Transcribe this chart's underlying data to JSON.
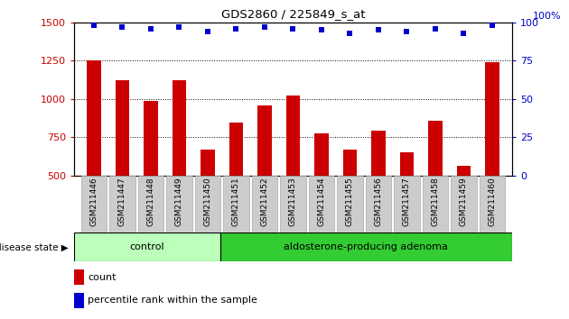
{
  "title": "GDS2860 / 225849_s_at",
  "samples": [
    "GSM211446",
    "GSM211447",
    "GSM211448",
    "GSM211449",
    "GSM211450",
    "GSM211451",
    "GSM211452",
    "GSM211453",
    "GSM211454",
    "GSM211455",
    "GSM211456",
    "GSM211457",
    "GSM211458",
    "GSM211459",
    "GSM211460"
  ],
  "counts": [
    1250,
    1120,
    985,
    1120,
    670,
    845,
    960,
    1020,
    775,
    670,
    790,
    650,
    860,
    565,
    1240
  ],
  "percentile": [
    98,
    97,
    96,
    97,
    94,
    96,
    97,
    96,
    95,
    93,
    95,
    94,
    96,
    93,
    98
  ],
  "control_count": 5,
  "ylim_left": [
    500,
    1500
  ],
  "ylim_right": [
    0,
    100
  ],
  "yticks_left": [
    500,
    750,
    1000,
    1250,
    1500
  ],
  "yticks_right": [
    0,
    25,
    50,
    75,
    100
  ],
  "bar_color": "#cc0000",
  "dot_color": "#0000cc",
  "control_bg": "#bbffbb",
  "adenoma_bg": "#33cc33",
  "control_label": "control",
  "adenoma_label": "aldosterone-producing adenoma",
  "disease_label": "disease state",
  "legend_count": "count",
  "legend_percentile": "percentile rank within the sample",
  "tick_label_color_left": "#cc0000",
  "tick_label_color_right": "#0000cc",
  "xtick_bg_color": "#cccccc",
  "xtick_border_color": "#aaaaaa"
}
